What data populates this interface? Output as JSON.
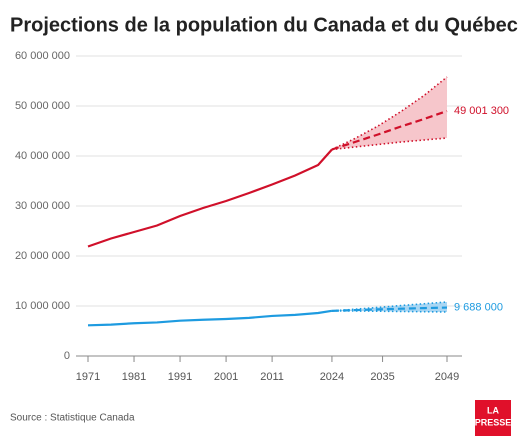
{
  "chart_data": {
    "type": "line",
    "title": "Projections de la population du Canada et du Québec",
    "source": "Source : Statistique Canada",
    "logo": [
      "LA",
      "PRESSE"
    ],
    "x": [
      1971,
      1976,
      1981,
      1986,
      1991,
      1996,
      2001,
      2006,
      2011,
      2016,
      2021,
      2024,
      2029,
      2034,
      2039,
      2044,
      2049
    ],
    "xlim": [
      1971,
      2049
    ],
    "xticks": [
      1971,
      1981,
      1991,
      2001,
      2011,
      2024,
      2035,
      2049
    ],
    "ylim": [
      0,
      60000000
    ],
    "yticks": [
      {
        "value": 0,
        "label": "0"
      },
      {
        "value": 10000000,
        "label": "10 000 000"
      },
      {
        "value": 20000000,
        "label": "20 000 000"
      },
      {
        "value": 30000000,
        "label": "30 000 000"
      },
      {
        "value": 40000000,
        "label": "40 000 000"
      },
      {
        "value": 50000000,
        "label": "50 000 000"
      },
      {
        "value": 60000000,
        "label": "60 000 000"
      }
    ],
    "grid": true,
    "series": [
      {
        "color": "#d0102a",
        "style": "solid",
        "values": [
          21900000,
          23500000,
          24800000,
          26100000,
          28000000,
          29600000,
          31000000,
          32600000,
          34300000,
          36100000,
          38200000,
          41300000,
          null,
          null,
          null,
          null,
          null
        ]
      },
      {
        "color": "#d0102a",
        "style": "dashed",
        "band_color": "#f6c6cb",
        "values": [
          null,
          null,
          null,
          null,
          null,
          null,
          null,
          null,
          null,
          null,
          null,
          41300000,
          42800000,
          44300000,
          45900000,
          47400000,
          49001300
        ],
        "upper": [
          null,
          null,
          null,
          null,
          null,
          null,
          null,
          null,
          null,
          null,
          null,
          41300000,
          43500000,
          46000000,
          48900000,
          52100000,
          55800000
        ],
        "lower": [
          null,
          null,
          null,
          null,
          null,
          null,
          null,
          null,
          null,
          null,
          null,
          41300000,
          41800000,
          42300000,
          42800000,
          43200000,
          43600000
        ],
        "value_labels": [
          null,
          null,
          null,
          null,
          null,
          null,
          null,
          null,
          null,
          null,
          null,
          null,
          null,
          null,
          null,
          null,
          "49 001 300"
        ]
      },
      {
        "color": "#1e9be0",
        "style": "solid",
        "values": [
          6140000,
          6280000,
          6550000,
          6710000,
          7060000,
          7250000,
          7400000,
          7630000,
          8010000,
          8230000,
          8600000,
          9030000,
          null,
          null,
          null,
          null,
          null
        ]
      },
      {
        "color": "#1e9be0",
        "style": "dashed",
        "band_color": "#a9d6f3",
        "values": [
          null,
          null,
          null,
          null,
          null,
          null,
          null,
          null,
          null,
          null,
          null,
          9030000,
          9180000,
          9320000,
          9460000,
          9580000,
          9688000
        ],
        "upper": [
          null,
          null,
          null,
          null,
          null,
          null,
          null,
          null,
          null,
          null,
          null,
          9030000,
          9350000,
          9720000,
          10090000,
          10450000,
          10800000
        ],
        "lower": [
          null,
          null,
          null,
          null,
          null,
          null,
          null,
          null,
          null,
          null,
          null,
          9030000,
          9000000,
          8960000,
          8910000,
          8860000,
          8800000
        ],
        "value_labels": [
          null,
          null,
          null,
          null,
          null,
          null,
          null,
          null,
          null,
          null,
          null,
          null,
          null,
          null,
          null,
          null,
          "9 688 000"
        ]
      }
    ]
  }
}
